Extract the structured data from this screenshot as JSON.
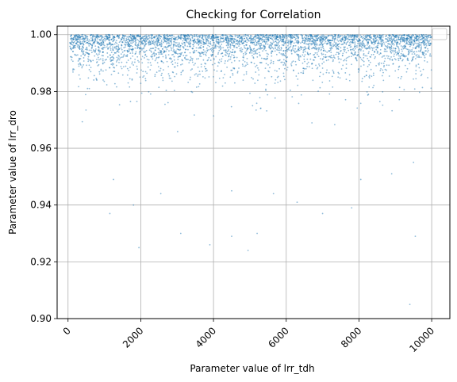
{
  "chart_data": {
    "type": "scatter",
    "title": "Checking for Correlation",
    "xlabel": "Parameter value of lrr_tdh",
    "ylabel": "Parameter value of lrr_dro",
    "xlim": [
      -300,
      10500
    ],
    "ylim": [
      0.9,
      1.003
    ],
    "xticks": [
      0,
      2000,
      4000,
      6000,
      8000,
      10000
    ],
    "xtick_labels": [
      "0",
      "2000",
      "4000",
      "6000",
      "8000",
      "10000"
    ],
    "xtick_rotation": 45,
    "yticks": [
      0.9,
      0.92,
      0.94,
      0.96,
      0.98,
      1.0
    ],
    "ytick_labels": [
      "0.90",
      "0.92",
      "0.94",
      "0.96",
      "0.98",
      "1.00"
    ],
    "grid": true,
    "legend": "top-right, empty",
    "marker_color": "#1f77b4",
    "marker_alpha": 0.5,
    "approx_point_count": 10000,
    "x_range_of_data": [
      50,
      10000
    ],
    "y_range_of_data": [
      0.904,
      1.0
    ],
    "notable_outliers": [
      {
        "x": 9400,
        "y": 0.905
      },
      {
        "x": 1950,
        "y": 0.925
      },
      {
        "x": 3900,
        "y": 0.926
      },
      {
        "x": 4950,
        "y": 0.924
      },
      {
        "x": 3100,
        "y": 0.93
      },
      {
        "x": 5200,
        "y": 0.93
      },
      {
        "x": 4500,
        "y": 0.929
      },
      {
        "x": 9550,
        "y": 0.929
      },
      {
        "x": 1150,
        "y": 0.937
      },
      {
        "x": 7000,
        "y": 0.937
      },
      {
        "x": 1800,
        "y": 0.94
      },
      {
        "x": 7800,
        "y": 0.939
      },
      {
        "x": 1250,
        "y": 0.949
      },
      {
        "x": 2550,
        "y": 0.944
      },
      {
        "x": 4500,
        "y": 0.945
      },
      {
        "x": 5650,
        "y": 0.944
      },
      {
        "x": 6300,
        "y": 0.941
      },
      {
        "x": 8050,
        "y": 0.949
      },
      {
        "x": 8900,
        "y": 0.951
      },
      {
        "x": 9500,
        "y": 0.955
      }
    ]
  }
}
